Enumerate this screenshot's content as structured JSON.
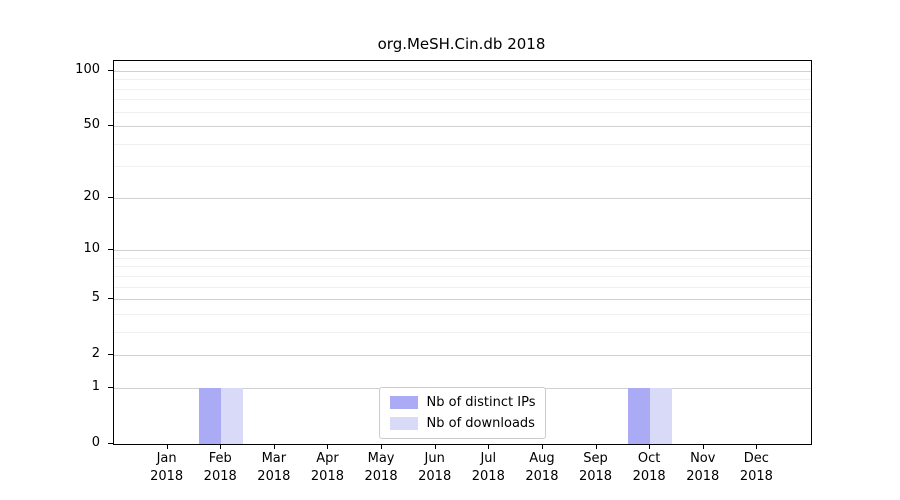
{
  "figure": {
    "title": "org.MeSH.Cin.db 2018"
  },
  "legend": {
    "items": [
      {
        "label": "Nb of distinct IPs",
        "color": "#aaaaf5"
      },
      {
        "label": "Nb of downloads",
        "color": "#d9d9f8"
      }
    ]
  },
  "chart_data": {
    "type": "bar",
    "title": "org.MeSH.Cin.db 2018",
    "categories": [
      "Jan 2018",
      "Feb 2018",
      "Mar 2018",
      "Apr 2018",
      "May 2018",
      "Jun 2018",
      "Jul 2018",
      "Aug 2018",
      "Sep 2018",
      "Oct 2018",
      "Nov 2018",
      "Dec 2018"
    ],
    "x_tick_line1": [
      "Jan",
      "Feb",
      "Mar",
      "Apr",
      "May",
      "Jun",
      "Jul",
      "Aug",
      "Sep",
      "Oct",
      "Nov",
      "Dec"
    ],
    "x_tick_line2": "2018",
    "series": [
      {
        "name": "Nb of distinct IPs",
        "color": "#aaaaf5",
        "values": [
          0,
          1,
          0,
          0,
          0,
          0,
          0,
          0,
          0,
          1,
          0,
          0
        ]
      },
      {
        "name": "Nb of downloads",
        "color": "#d9d9f8",
        "values": [
          0,
          1,
          0,
          0,
          0,
          0,
          0,
          0,
          0,
          1,
          0,
          0
        ]
      }
    ],
    "yscale": "log1p",
    "ylabel": "",
    "xlabel": "",
    "y_ticks": [
      0,
      1,
      2,
      5,
      10,
      20,
      50,
      100
    ],
    "y_minor_gridlines": [
      3,
      4,
      6,
      7,
      8,
      9,
      30,
      40,
      60,
      70,
      80,
      90
    ],
    "ylim": [
      0,
      113
    ],
    "grid": "horizontal, major and minor",
    "legend_position": "lower center",
    "gridline_major_color": "#d0d0d0",
    "gridline_minor_color": "#f0f0f0"
  }
}
